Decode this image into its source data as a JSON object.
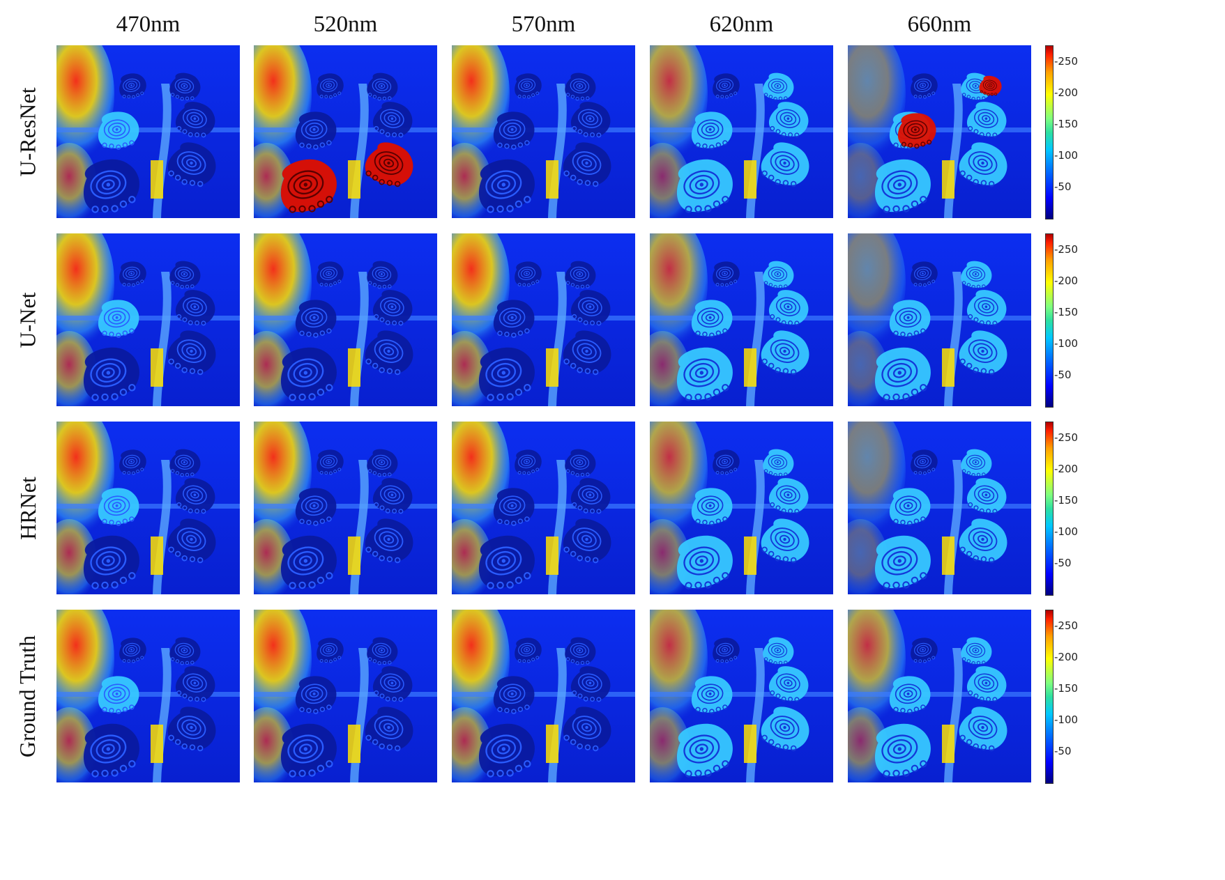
{
  "columns": [
    "470nm",
    "520nm",
    "570nm",
    "620nm",
    "660nm"
  ],
  "rows": [
    "U-ResNet",
    "U-Net",
    "HRNet",
    "Ground Truth"
  ],
  "colorbar": {
    "ticks": [
      "-250",
      "-200",
      "-150",
      "-100",
      "-50"
    ],
    "tick_values": [
      250,
      200,
      150,
      100,
      50
    ],
    "range": [
      0,
      275
    ],
    "colormap": "jet"
  },
  "colors": {
    "background_blue": "#0a28e6",
    "glow_yellow": "#ffe000",
    "glow_red": "#ff3010",
    "footprint_cyan": "#37c8ff",
    "footprint_dark": "#0a1aa0",
    "artifact_red": "#e01000"
  },
  "panels": [
    [
      {
        "fp": "mixed",
        "glow": "high"
      },
      {
        "fp": "dark-red",
        "glow": "high"
      },
      {
        "fp": "dark",
        "glow": "high"
      },
      {
        "fp": "light",
        "glow": "medium"
      },
      {
        "fp": "light-red",
        "glow": "low"
      }
    ],
    [
      {
        "fp": "mixed",
        "glow": "high"
      },
      {
        "fp": "dark",
        "glow": "high"
      },
      {
        "fp": "dark",
        "glow": "high"
      },
      {
        "fp": "light",
        "glow": "medium"
      },
      {
        "fp": "light",
        "glow": "low"
      }
    ],
    [
      {
        "fp": "mixed",
        "glow": "high"
      },
      {
        "fp": "dark",
        "glow": "high"
      },
      {
        "fp": "dark",
        "glow": "high"
      },
      {
        "fp": "light",
        "glow": "medium"
      },
      {
        "fp": "light",
        "glow": "low"
      }
    ],
    [
      {
        "fp": "mixed",
        "glow": "high"
      },
      {
        "fp": "dark",
        "glow": "high"
      },
      {
        "fp": "dark",
        "glow": "high"
      },
      {
        "fp": "light",
        "glow": "medium"
      },
      {
        "fp": "light",
        "glow": "medium"
      }
    ]
  ]
}
